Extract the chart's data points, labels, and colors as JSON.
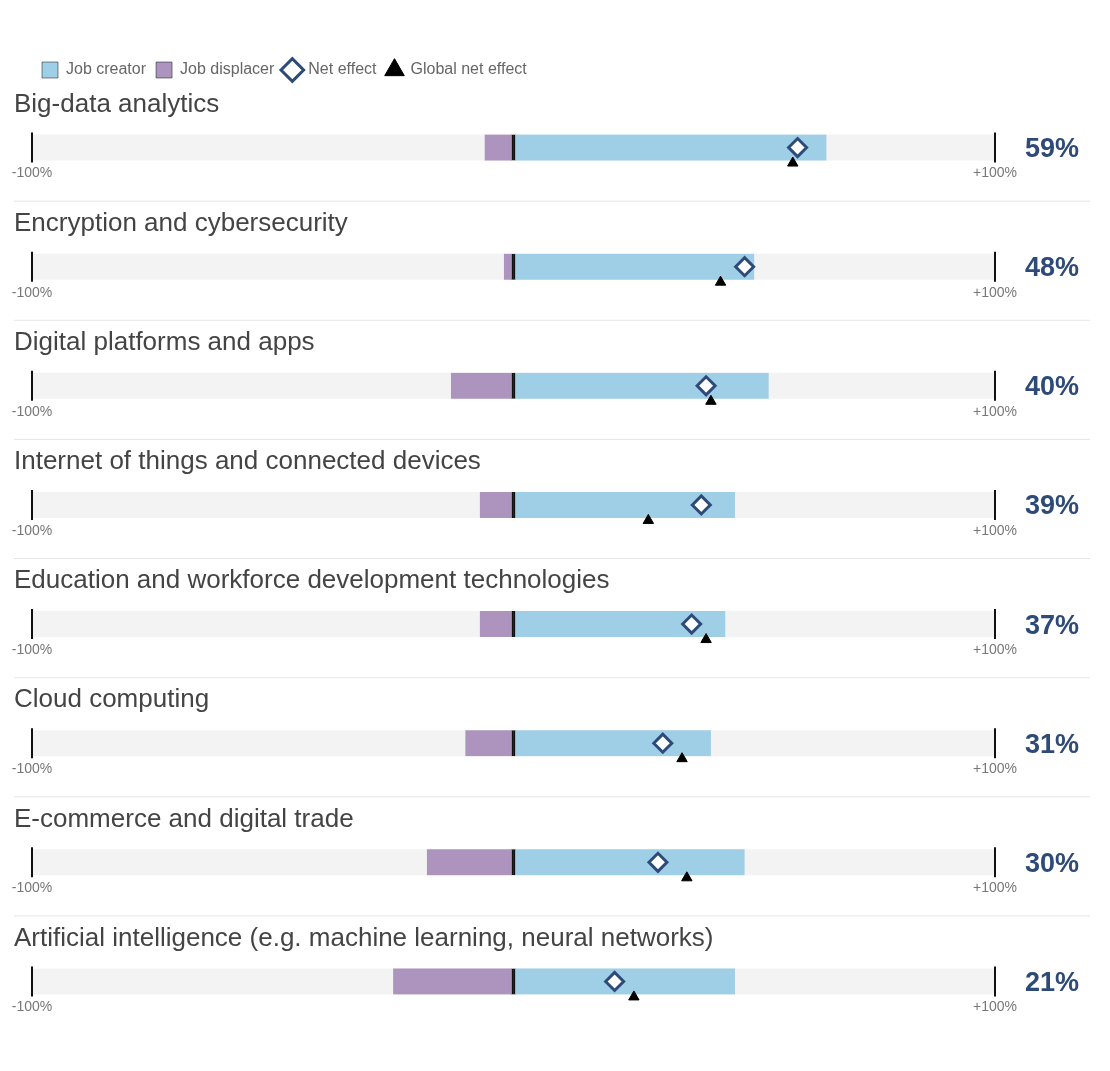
{
  "chart_data": {
    "type": "bar",
    "orientation": "horizontal",
    "stacked": true,
    "legend": "top left",
    "categories": [
      "Big-data analytics",
      "Encryption and cybersecurity",
      "Digital platforms and apps",
      "Internet of things and connected devices",
      "Education and workforce development technologies",
      "Cloud computing",
      "E-commerce and digital trade",
      "Artificial intelligence (e.g. machine learning, neural networks)"
    ],
    "xlim": [
      -100,
      100
    ],
    "xticks": [
      {
        "value": -100,
        "label": "-100%"
      },
      {
        "value": 100,
        "label": "+100%"
      }
    ],
    "series": [
      {
        "name": "Job creator",
        "type": "bar",
        "color": "#9fcfe7",
        "values": [
          65,
          50,
          53,
          46,
          44,
          41,
          48,
          46
        ]
      },
      {
        "name": "Job displacer",
        "type": "bar",
        "color": "#ad94bf",
        "values": [
          -6,
          -2,
          -13,
          -7,
          -7,
          -10,
          -18,
          -25
        ]
      },
      {
        "name": "Net effect",
        "type": "scatter",
        "marker": "diamond",
        "color": "#2d4a78",
        "values": [
          59,
          48,
          40,
          39,
          37,
          31,
          30,
          21
        ],
        "value_labels": [
          "59%",
          "48%",
          "40%",
          "39%",
          "37%",
          "31%",
          "30%",
          "21%"
        ]
      },
      {
        "name": "Global net effect",
        "type": "scatter",
        "marker": "triangle",
        "color": "#000000",
        "values": [
          58,
          43,
          41,
          28,
          40,
          35,
          36,
          25
        ]
      }
    ]
  }
}
